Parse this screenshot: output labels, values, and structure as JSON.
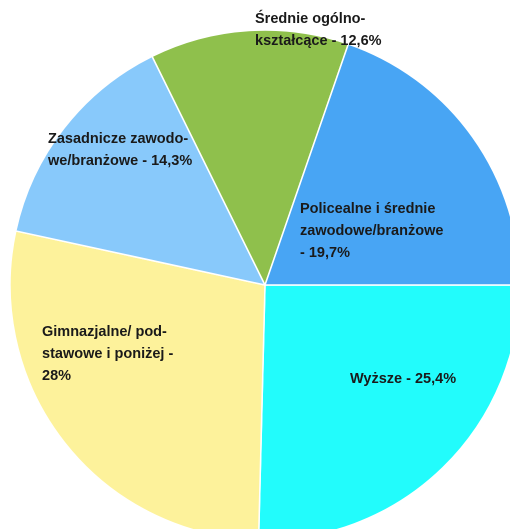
{
  "chart_data": {
    "type": "pie",
    "categories": [
      [
        "Wyższe -"
      ],
      [
        "Gimnazjalne/ pod-",
        "stawowe i poniżej -"
      ],
      [
        "Zasadnicze zawodo-",
        "we/branżowe -"
      ],
      [
        "Średnie ogólno-",
        "kształcące -"
      ],
      [
        "Policealne i średnie",
        "zawodowe/branżowe",
        "-"
      ]
    ],
    "values": [
      25.4,
      28,
      14.3,
      12.6,
      19.7
    ],
    "value_labels": [
      "25,4%",
      "28%",
      "14,3%",
      "12,6%",
      "19,7%"
    ],
    "colors": [
      "#22fcfc",
      "#fdf29b",
      "#88c9fb",
      "#8fc04c",
      "#48a5f4"
    ]
  }
}
